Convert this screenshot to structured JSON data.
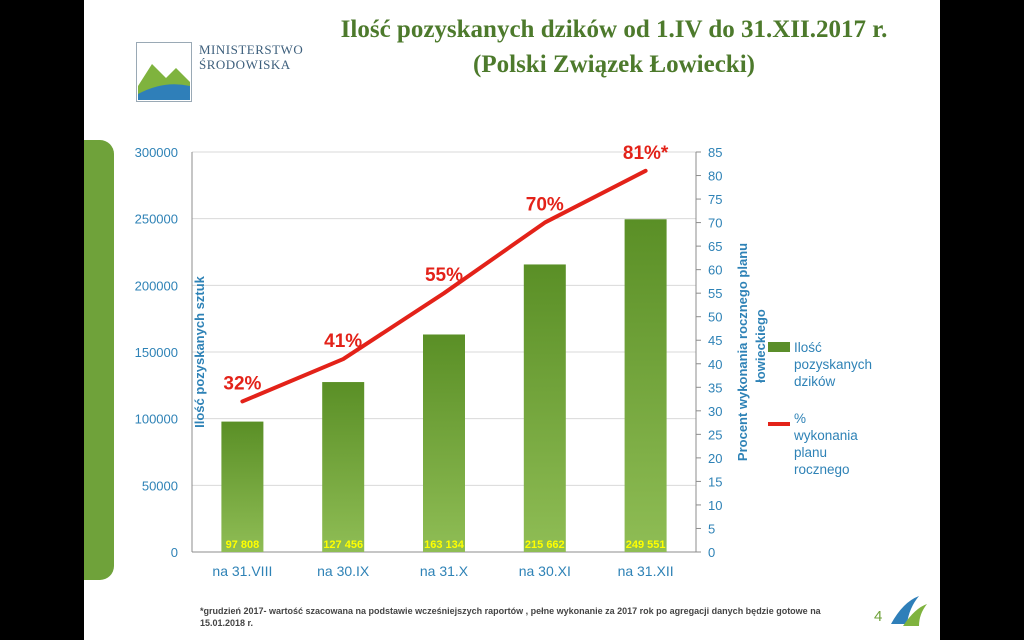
{
  "logo": {
    "line1": "MINISTERSTWO",
    "line2": "ŚRODOWISKA"
  },
  "title": "Ilość pozyskanych dzików od 1.IV do 31.XII.2017 r. (Polski Związek Łowiecki)",
  "footnote": "*grudzień 2017- wartość szacowana na podstawie wcześniejszych raportów , pełne wykonanie za 2017 rok  po agregacji danych będzie gotowe na 15.01.2018 r.",
  "page_number": "4",
  "colors": {
    "bar": "#5b8e2a",
    "line": "#e32219",
    "axis_text": "#2e82b6",
    "title": "#4d7a2c",
    "bar_label": "#ffff00"
  },
  "chart_data": {
    "type": "bar+line",
    "categories": [
      "na 31.VIII",
      "na 30.IX",
      "na 31.X",
      "na 30.XI",
      "na 31.XII"
    ],
    "y_ticks": [
      "0",
      "50000",
      "100000",
      "150000",
      "200000",
      "250000",
      "300000"
    ],
    "y2_ticks": [
      "0",
      "5",
      "10",
      "15",
      "20",
      "25",
      "30",
      "35",
      "40",
      "45",
      "50",
      "55",
      "60",
      "65",
      "70",
      "75",
      "80",
      "85"
    ],
    "ylim": [
      0,
      300000
    ],
    "y2lim": [
      0,
      85
    ],
    "ylabel": "Ilość pozyskanych sztuk",
    "y2label_line1": "Procent wykonania rocznego planu",
    "y2label_line2": "łowieckiego",
    "series": [
      {
        "name": "Ilość pozyskanych dzików",
        "kind": "bar",
        "axis": "left",
        "values": [
          97808,
          127456,
          163134,
          215662,
          249551
        ],
        "labels": [
          "97 808",
          "127 456",
          "163 134",
          "215 662",
          "249 551"
        ]
      },
      {
        "name": "% wykonania planu rocznego",
        "kind": "line",
        "axis": "right",
        "values": [
          32,
          41,
          55,
          70,
          81
        ],
        "labels": [
          "32%",
          "41%",
          "55%",
          "70%",
          "81%*"
        ]
      }
    ],
    "legend": {
      "position": "right",
      "bar_lines": [
        "Ilość",
        "pozyskanych",
        "dzików"
      ],
      "line_lines": [
        "%",
        "wykonania",
        "planu",
        "rocznego"
      ]
    },
    "grid": "horizontal"
  }
}
